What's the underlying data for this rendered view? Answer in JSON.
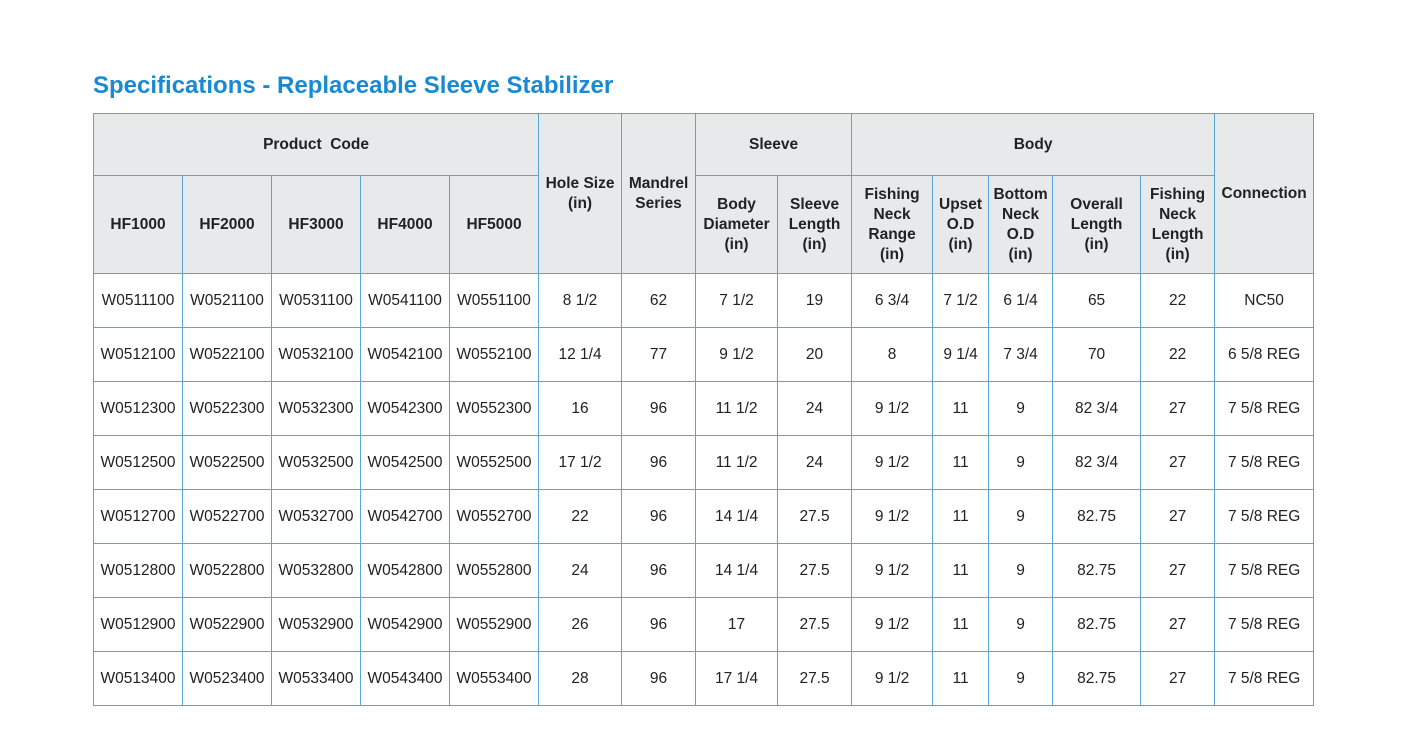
{
  "title": "Specifications - Replaceable Sleeve Stabilizer",
  "table": {
    "group_headers": [
      "Product  Code",
      "Sleeve",
      "Body"
    ],
    "columns": [
      "HF1000",
      "HF2000",
      "HF3000",
      "HF4000",
      "HF5000",
      "Hole Size\n(in)",
      "Mandrel\nSeries",
      "Body\nDiameter\n(in)",
      "Sleeve\nLength\n(in)",
      "Fishing\nNeck\nRange\n(in)",
      "Upset\nO.D\n(in)",
      "Bottom\nNeck\nO.D\n(in)",
      "Overall\nLength\n(in)",
      "Fishing\nNeck\nLength\n(in)",
      "Connection"
    ],
    "rows": [
      [
        "W0511100",
        "W0521100",
        "W0531100",
        "W0541100",
        "W0551100",
        "8 1/2",
        "62",
        "7 1/2",
        "19",
        "6 3/4",
        "7 1/2",
        "6 1/4",
        "65",
        "22",
        "NC50"
      ],
      [
        "W0512100",
        "W0522100",
        "W0532100",
        "W0542100",
        "W0552100",
        "12 1/4",
        "77",
        "9 1/2",
        "20",
        "8",
        "9 1/4",
        "7 3/4",
        "70",
        "22",
        "6 5/8 REG"
      ],
      [
        "W0512300",
        "W0522300",
        "W0532300",
        "W0542300",
        "W0552300",
        "16",
        "96",
        "11 1/2",
        "24",
        "9 1/2",
        "11",
        "9",
        "82 3/4",
        "27",
        "7 5/8 REG"
      ],
      [
        "W0512500",
        "W0522500",
        "W0532500",
        "W0542500",
        "W0552500",
        "17 1/2",
        "96",
        "11 1/2",
        "24",
        "9 1/2",
        "11",
        "9",
        "82 3/4",
        "27",
        "7 5/8 REG"
      ],
      [
        "W0512700",
        "W0522700",
        "W0532700",
        "W0542700",
        "W0552700",
        "22",
        "96",
        "14 1/4",
        "27.5",
        "9 1/2",
        "11",
        "9",
        "82.75",
        "27",
        "7 5/8 REG"
      ],
      [
        "W0512800",
        "W0522800",
        "W0532800",
        "W0542800",
        "W0552800",
        "24",
        "96",
        "14 1/4",
        "27.5",
        "9 1/2",
        "11",
        "9",
        "82.75",
        "27",
        "7 5/8 REG"
      ],
      [
        "W0512900",
        "W0522900",
        "W0532900",
        "W0542900",
        "W0552900",
        "26",
        "96",
        "17",
        "27.5",
        "9 1/2",
        "11",
        "9",
        "82.75",
        "27",
        "7 5/8 REG"
      ],
      [
        "W0513400",
        "W0523400",
        "W0533400",
        "W0543400",
        "W0553400",
        "28",
        "96",
        "17 1/4",
        "27.5",
        "9 1/2",
        "11",
        "9",
        "82.75",
        "27",
        "7 5/8 REG"
      ]
    ]
  }
}
